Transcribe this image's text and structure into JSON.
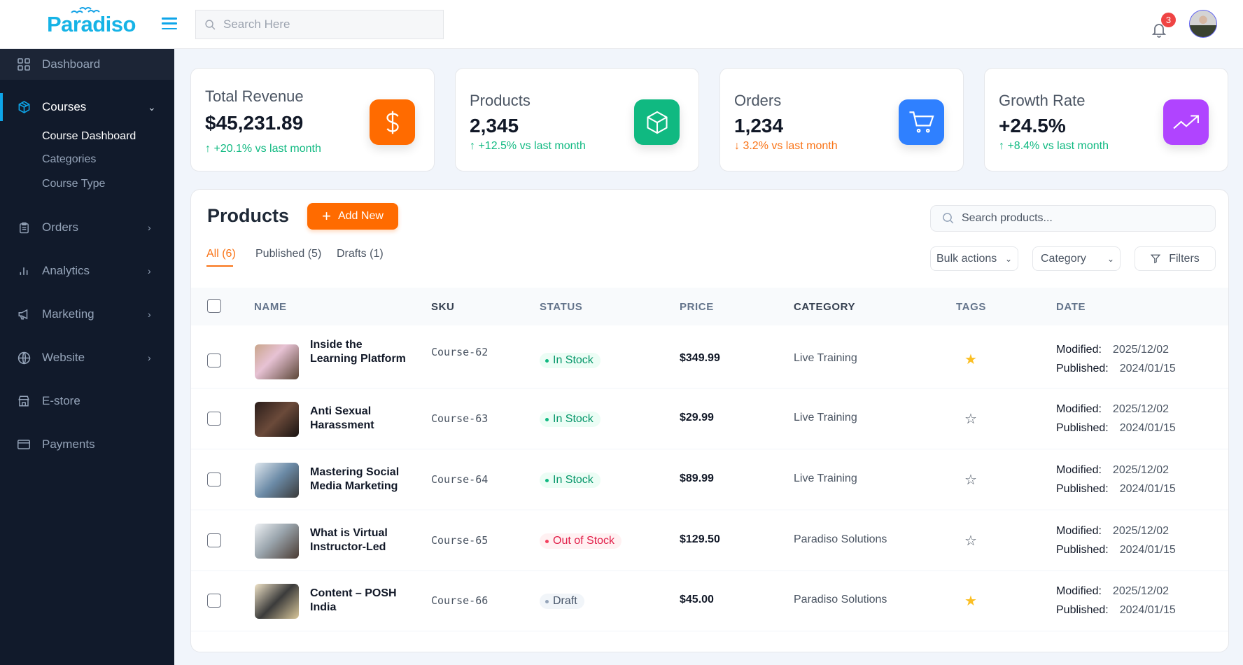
{
  "header": {
    "logo": "Paradiso",
    "search_placeholder": "Search Here",
    "notifications": "3"
  },
  "sidebar": {
    "items": [
      {
        "label": "Dashboard",
        "icon": "grid-icon"
      },
      {
        "label": "Courses",
        "icon": "cube-icon",
        "expanded": true,
        "sub": [
          "Course Dashboard",
          "Categories",
          "Course Type"
        ]
      },
      {
        "label": "Orders",
        "icon": "clipboard-icon"
      },
      {
        "label": "Analytics",
        "icon": "bar-chart-icon"
      },
      {
        "label": "Marketing",
        "icon": "megaphone-icon"
      },
      {
        "label": "Website",
        "icon": "globe-icon"
      },
      {
        "label": "E-store",
        "icon": "store-icon"
      },
      {
        "label": "Payments",
        "icon": "credit-card-icon"
      }
    ]
  },
  "stats": [
    {
      "title": "Total Revenue",
      "value": "$45,231.89",
      "delta": "↑ +20.1% vs last month",
      "trend": "up",
      "color": "#ff6b00",
      "icon": "dollar-icon"
    },
    {
      "title": "Products",
      "value": "2,345",
      "delta": "↑ +12.5% vs last month",
      "trend": "up",
      "color": "#10b981",
      "icon": "box-icon"
    },
    {
      "title": "Orders",
      "value": "1,234",
      "delta": "↓ 3.2% vs last month",
      "trend": "down",
      "color": "#2f80ff",
      "icon": "cart-icon"
    },
    {
      "title": "Growth Rate",
      "value": "+24.5%",
      "delta": "↑ +8.4% vs last month",
      "trend": "up",
      "color": "#b044ff",
      "icon": "trending-up-icon"
    }
  ],
  "products": {
    "title": "Products",
    "add_label": "Add New",
    "search_placeholder": "Search products...",
    "tabs": [
      "All (6)",
      "Published (5)",
      "Drafts (1)"
    ],
    "bulk": "Bulk actions",
    "category": "Category",
    "filters": "Filters",
    "columns": [
      "NAME",
      "SKU",
      "STATUS",
      "PRICE",
      "CATEGORY",
      "TAGS",
      "DATE"
    ],
    "modified_label": "Modified:",
    "published_label": "Published:",
    "rows": [
      {
        "name": "Inside the Learning Platform",
        "sku": "Course-62",
        "status": "In Stock",
        "price": "$349.99",
        "category": "Live Training",
        "starred": true,
        "modified": "2025/12/02",
        "published": "2024/01/15"
      },
      {
        "name": "Anti Sexual Harassment",
        "sku": "Course-63",
        "status": "In Stock",
        "price": "$29.99",
        "category": "Live Training",
        "starred": false,
        "modified": "2025/12/02",
        "published": "2024/01/15"
      },
      {
        "name": "Mastering Social Media Marketing",
        "sku": "Course-64",
        "status": "In Stock",
        "price": "$89.99",
        "category": "Live Training",
        "starred": false,
        "modified": "2025/12/02",
        "published": "2024/01/15"
      },
      {
        "name": "What is Virtual Instructor-Led",
        "sku": "Course-65",
        "status": "Out of Stock",
        "price": "$129.50",
        "category": "Paradiso Solutions",
        "starred": false,
        "modified": "2025/12/02",
        "published": "2024/01/15"
      },
      {
        "name": "Content – POSH India",
        "sku": "Course-66",
        "status": "Draft",
        "price": "$45.00",
        "category": "Paradiso Solutions",
        "starred": true,
        "modified": "2025/12/02",
        "published": "2024/01/15"
      }
    ]
  }
}
